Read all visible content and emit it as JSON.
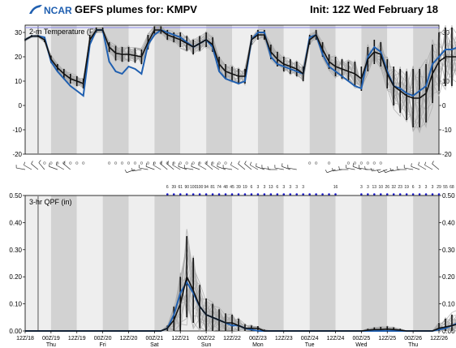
{
  "header": {
    "logo_text": "NCAR",
    "title": "GEFS plumes for: KMPV",
    "init": "Init: 12Z Wed February 18"
  },
  "colors": {
    "shade_light": "#eeeeee",
    "shade_dark": "#d2d2d2",
    "member": "#aaaaaa",
    "ensemble_mean": "#111111",
    "control": "#1f5fb0",
    "reference": "#8c8cee",
    "dots": "#1a1acc"
  },
  "x_axis": {
    "ticks": [
      {
        "label": "12Z/18",
        "day": ""
      },
      {
        "label": "00Z/19",
        "day": "Thu"
      },
      {
        "label": "12Z/19",
        "day": ""
      },
      {
        "label": "00Z/20",
        "day": "Fri"
      },
      {
        "label": "12Z/20",
        "day": ""
      },
      {
        "label": "00Z/21",
        "day": "Sat"
      },
      {
        "label": "12Z/21",
        "day": ""
      },
      {
        "label": "00Z/22",
        "day": "Sun"
      },
      {
        "label": "12Z/22",
        "day": ""
      },
      {
        "label": "00Z/23",
        "day": "Mon"
      },
      {
        "label": "12Z/23",
        "day": ""
      },
      {
        "label": "00Z/24",
        "day": "Tue"
      },
      {
        "label": "12Z/24",
        "day": ""
      },
      {
        "label": "00Z/25",
        "day": "Wed"
      },
      {
        "label": "12Z/25",
        "day": ""
      },
      {
        "label": "00Z/26",
        "day": "Thu"
      },
      {
        "label": "12Z/26",
        "day": ""
      }
    ]
  },
  "temp_dots": [
    3,
    4,
    5,
    6,
    7,
    8,
    9,
    13,
    14,
    15,
    16,
    17,
    18,
    19,
    20,
    21,
    22,
    23,
    24,
    25,
    26,
    27,
    28,
    29,
    30,
    31,
    44,
    45,
    47,
    50,
    51,
    52,
    53,
    54,
    55
  ],
  "wind_barbs": [
    {
      "i": 0,
      "d": 280
    },
    {
      "i": 1,
      "d": 300
    },
    {
      "i": 2,
      "d": 310
    },
    {
      "i": 3,
      "d": 320
    },
    {
      "i": 5,
      "d": 290
    },
    {
      "i": 6,
      "d": 300
    },
    {
      "i": 7,
      "d": 310
    },
    {
      "i": 17,
      "d": 250
    },
    {
      "i": 18,
      "d": 260
    },
    {
      "i": 19,
      "d": 280
    },
    {
      "i": 20,
      "d": 290
    },
    {
      "i": 21,
      "d": 300
    },
    {
      "i": 22,
      "d": 310
    },
    {
      "i": 23,
      "d": 310
    },
    {
      "i": 24,
      "d": 300
    },
    {
      "i": 25,
      "d": 290
    },
    {
      "i": 26,
      "d": 280
    },
    {
      "i": 27,
      "d": 290
    },
    {
      "i": 28,
      "d": 300
    },
    {
      "i": 29,
      "d": 310
    },
    {
      "i": 30,
      "d": 300
    },
    {
      "i": 31,
      "d": 290
    },
    {
      "i": 32,
      "d": 280
    },
    {
      "i": 33,
      "d": 300
    },
    {
      "i": 34,
      "d": 310
    },
    {
      "i": 35,
      "d": 310
    },
    {
      "i": 36,
      "d": 300
    },
    {
      "i": 37,
      "d": 290
    },
    {
      "i": 38,
      "d": 280
    },
    {
      "i": 39,
      "d": 270
    },
    {
      "i": 40,
      "d": 280
    },
    {
      "i": 41,
      "d": 290
    },
    {
      "i": 42,
      "d": 280
    },
    {
      "i": 48,
      "d": 250
    },
    {
      "i": 49,
      "d": 260
    },
    {
      "i": 50,
      "d": 270
    },
    {
      "i": 51,
      "d": 280
    },
    {
      "i": 52,
      "d": 290
    },
    {
      "i": 53,
      "d": 280
    },
    {
      "i": 54,
      "d": 270
    },
    {
      "i": 55,
      "d": 260
    },
    {
      "i": 56,
      "d": 250
    },
    {
      "i": 57,
      "d": 250
    },
    {
      "i": 58,
      "d": 260
    },
    {
      "i": 59,
      "d": 270
    },
    {
      "i": 60,
      "d": 280
    },
    {
      "i": 61,
      "d": 290
    },
    {
      "i": 62,
      "d": 300
    },
    {
      "i": 63,
      "d": 300
    },
    {
      "i": 64,
      "d": 310
    }
  ],
  "prob_row": [
    {
      "i": 22,
      "t": "6"
    },
    {
      "i": 23,
      "t": "39"
    },
    {
      "i": 24,
      "t": "61"
    },
    {
      "i": 25,
      "t": "90"
    },
    {
      "i": 26,
      "t": "100"
    },
    {
      "i": 27,
      "t": "100"
    },
    {
      "i": 28,
      "t": "94"
    },
    {
      "i": 29,
      "t": "81"
    },
    {
      "i": 30,
      "t": "74"
    },
    {
      "i": 31,
      "t": "48"
    },
    {
      "i": 32,
      "t": "45"
    },
    {
      "i": 33,
      "t": "39"
    },
    {
      "i": 34,
      "t": "19"
    },
    {
      "i": 35,
      "t": "6"
    },
    {
      "i": 36,
      "t": "3"
    },
    {
      "i": 37,
      "t": "3"
    },
    {
      "i": 38,
      "t": "13"
    },
    {
      "i": 39,
      "t": "6"
    },
    {
      "i": 40,
      "t": "3"
    },
    {
      "i": 41,
      "t": "3"
    },
    {
      "i": 42,
      "t": "3"
    },
    {
      "i": 43,
      "t": "3"
    },
    {
      "i": 48,
      "t": "16"
    },
    {
      "i": 52,
      "t": "3"
    },
    {
      "i": 53,
      "t": "3"
    },
    {
      "i": 54,
      "t": "13"
    },
    {
      "i": 55,
      "t": "10"
    },
    {
      "i": 56,
      "t": "26"
    },
    {
      "i": 57,
      "t": "32"
    },
    {
      "i": 58,
      "t": "23"
    },
    {
      "i": 59,
      "t": "19"
    },
    {
      "i": 60,
      "t": "6"
    },
    {
      "i": 61,
      "t": "3"
    },
    {
      "i": 62,
      "t": "3"
    },
    {
      "i": 63,
      "t": "3"
    },
    {
      "i": 64,
      "t": "29"
    },
    {
      "i": 65,
      "t": "55"
    },
    {
      "i": 66,
      "t": "68"
    },
    {
      "i": 67,
      "t": "71"
    },
    {
      "i": 68,
      "t": "81"
    },
    {
      "i": 69,
      "t": "84"
    },
    {
      "i": 70,
      "t": "55"
    },
    {
      "i": 71,
      "t": "55"
    }
  ],
  "chart_data": [
    {
      "type": "line",
      "title": "2-m Temperature (F)",
      "ylim": [
        -20,
        33
      ],
      "yticks": [
        -20,
        -10,
        0,
        10,
        20,
        30
      ],
      "reference_line": 32,
      "x_step_hours": 3,
      "x_range_hours": [
        0,
        192
      ],
      "ensemble_mean": [
        27,
        28.5,
        28.5,
        27,
        19,
        15.5,
        13,
        11,
        10,
        9,
        27,
        31,
        31,
        24,
        21.5,
        21,
        21,
        20.5,
        20,
        26,
        31,
        31,
        29,
        28,
        27,
        25.5,
        24,
        25.5,
        27,
        25,
        17,
        14,
        13,
        12,
        12,
        27,
        29,
        29,
        22,
        19,
        17,
        16,
        15,
        13,
        27,
        29,
        23,
        18,
        16,
        15,
        14,
        13,
        11,
        19,
        22,
        21,
        13,
        8,
        6,
        4,
        3,
        3,
        5,
        13,
        18,
        20,
        20,
        20,
        20,
        19,
        20,
        20,
        20
      ],
      "control": [
        27,
        28.5,
        28.5,
        28,
        18,
        14,
        11,
        8,
        6,
        4,
        25,
        31,
        31,
        18,
        14,
        13,
        16,
        15,
        13,
        25,
        29,
        31,
        30,
        29,
        28,
        26,
        24,
        25.5,
        27,
        24,
        14,
        11,
        10,
        9,
        10,
        27,
        30,
        30,
        20,
        17,
        16,
        15,
        14,
        13,
        28,
        29,
        21,
        16,
        14,
        12,
        10,
        8,
        7,
        20,
        24,
        22,
        14,
        8,
        7,
        5,
        4,
        6,
        8,
        17,
        20,
        23,
        23,
        24,
        24,
        23,
        22,
        21,
        25
      ],
      "spread": [
        0.5,
        0.5,
        0.5,
        1,
        1.5,
        1.5,
        2,
        2,
        2,
        2,
        2,
        1,
        1,
        2,
        3,
        3,
        3,
        3,
        3,
        3,
        1.5,
        1.5,
        2,
        2,
        3,
        3,
        3,
        3,
        3,
        3,
        3,
        3,
        3,
        3,
        3,
        2,
        2,
        2,
        3,
        3,
        3,
        3,
        3,
        3,
        2,
        2,
        3,
        3,
        4,
        4,
        4,
        5,
        5,
        5,
        5,
        5,
        6,
        8,
        9,
        10,
        12,
        12,
        12,
        12,
        12,
        12,
        12,
        12,
        12,
        12,
        12,
        12,
        12
      ]
    },
    {
      "type": "line",
      "title": "3-hr QPF (in)",
      "ylim": [
        0,
        0.5
      ],
      "yticks": [
        0,
        0.1,
        0.2,
        0.3,
        0.4,
        0.5
      ],
      "ytick_labels": [
        "0.00",
        "0.10",
        "0.20",
        "0.30",
        "0.40",
        "0.50"
      ],
      "x_step_hours": 3,
      "x_range_hours": [
        0,
        192
      ],
      "ensemble_mean": [
        0,
        0,
        0,
        0,
        0,
        0,
        0,
        0,
        0,
        0,
        0,
        0,
        0,
        0,
        0,
        0,
        0,
        0,
        0,
        0,
        0,
        0,
        0.01,
        0.04,
        0.1,
        0.2,
        0.15,
        0.09,
        0.06,
        0.05,
        0.04,
        0.03,
        0.03,
        0.02,
        0.01,
        0.01,
        0.01,
        0,
        0,
        0,
        0,
        0,
        0,
        0,
        0,
        0,
        0,
        0,
        0,
        0,
        0,
        0,
        0,
        0.003,
        0.005,
        0.005,
        0.007,
        0.005,
        0.003,
        0,
        0,
        0,
        0,
        0,
        0.01,
        0.015,
        0.02,
        0.025,
        0.02,
        0.02,
        0.015,
        0.01,
        0.01
      ],
      "control": [
        0,
        0,
        0,
        0,
        0,
        0,
        0,
        0,
        0,
        0,
        0,
        0,
        0,
        0,
        0,
        0,
        0,
        0,
        0,
        0,
        0,
        0,
        0.01,
        0.06,
        0.14,
        0.18,
        0.14,
        0.09,
        0.06,
        0.05,
        0.04,
        0.03,
        0.02,
        0.02,
        0.01,
        0.005,
        0,
        0,
        0,
        0,
        0,
        0,
        0,
        0,
        0,
        0,
        0,
        0,
        0,
        0,
        0,
        0,
        0,
        0,
        0,
        0,
        0,
        0,
        0,
        0,
        0,
        0,
        0,
        0,
        0.005,
        0.01,
        0.02,
        0.03,
        0.04,
        0.03,
        0.02,
        0.01,
        0.01
      ],
      "spread": [
        0,
        0,
        0,
        0,
        0,
        0,
        0,
        0,
        0,
        0,
        0,
        0,
        0,
        0,
        0,
        0,
        0,
        0,
        0,
        0,
        0,
        0,
        0.01,
        0.05,
        0.1,
        0.15,
        0.12,
        0.08,
        0.06,
        0.05,
        0.04,
        0.035,
        0.03,
        0.025,
        0.015,
        0.01,
        0.008,
        0.005,
        0,
        0,
        0,
        0,
        0,
        0,
        0,
        0,
        0,
        0,
        0,
        0,
        0,
        0,
        0,
        0.005,
        0.008,
        0.01,
        0.01,
        0.008,
        0.005,
        0,
        0,
        0,
        0,
        0,
        0.02,
        0.03,
        0.04,
        0.05,
        0.04,
        0.04,
        0.03,
        0.02,
        0.02
      ]
    }
  ]
}
